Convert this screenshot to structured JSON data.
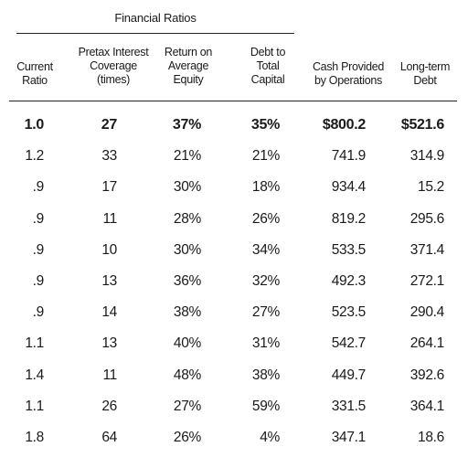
{
  "table": {
    "group_title": "Financial Ratios",
    "headers": [
      [
        "Current",
        "Ratio"
      ],
      [
        "Pretax Interest",
        "Coverage",
        "(times)"
      ],
      [
        "Return on",
        "Average",
        "Equity"
      ],
      [
        "Debt to",
        "Total",
        "Capital"
      ],
      [
        "Cash Provided",
        "by Operations"
      ],
      [
        "Long-term",
        "Debt"
      ]
    ],
    "rows": [
      [
        "1.0",
        "27",
        "37%",
        "35%",
        "$800.2",
        "$521.6"
      ],
      [
        "1.2",
        "33",
        "21%",
        "21%",
        "741.9",
        "314.9"
      ],
      [
        ".9",
        "17",
        "30%",
        "18%",
        "934.4",
        "15.2"
      ],
      [
        ".9",
        "11",
        "28%",
        "26%",
        "819.2",
        "295.6"
      ],
      [
        ".9",
        "10",
        "30%",
        "34%",
        "533.5",
        "371.4"
      ],
      [
        ".9",
        "13",
        "36%",
        "32%",
        "492.3",
        "272.1"
      ],
      [
        ".9",
        "14",
        "38%",
        "27%",
        "523.5",
        "290.4"
      ],
      [
        "1.1",
        "13",
        "40%",
        "31%",
        "542.7",
        "264.1"
      ],
      [
        "1.4",
        "11",
        "48%",
        "38%",
        "449.7",
        "392.6"
      ],
      [
        "1.1",
        "26",
        "27%",
        "59%",
        "331.5",
        "364.1"
      ],
      [
        "1.8",
        "64",
        "26%",
        "4%",
        "347.1",
        "18.6"
      ]
    ]
  }
}
